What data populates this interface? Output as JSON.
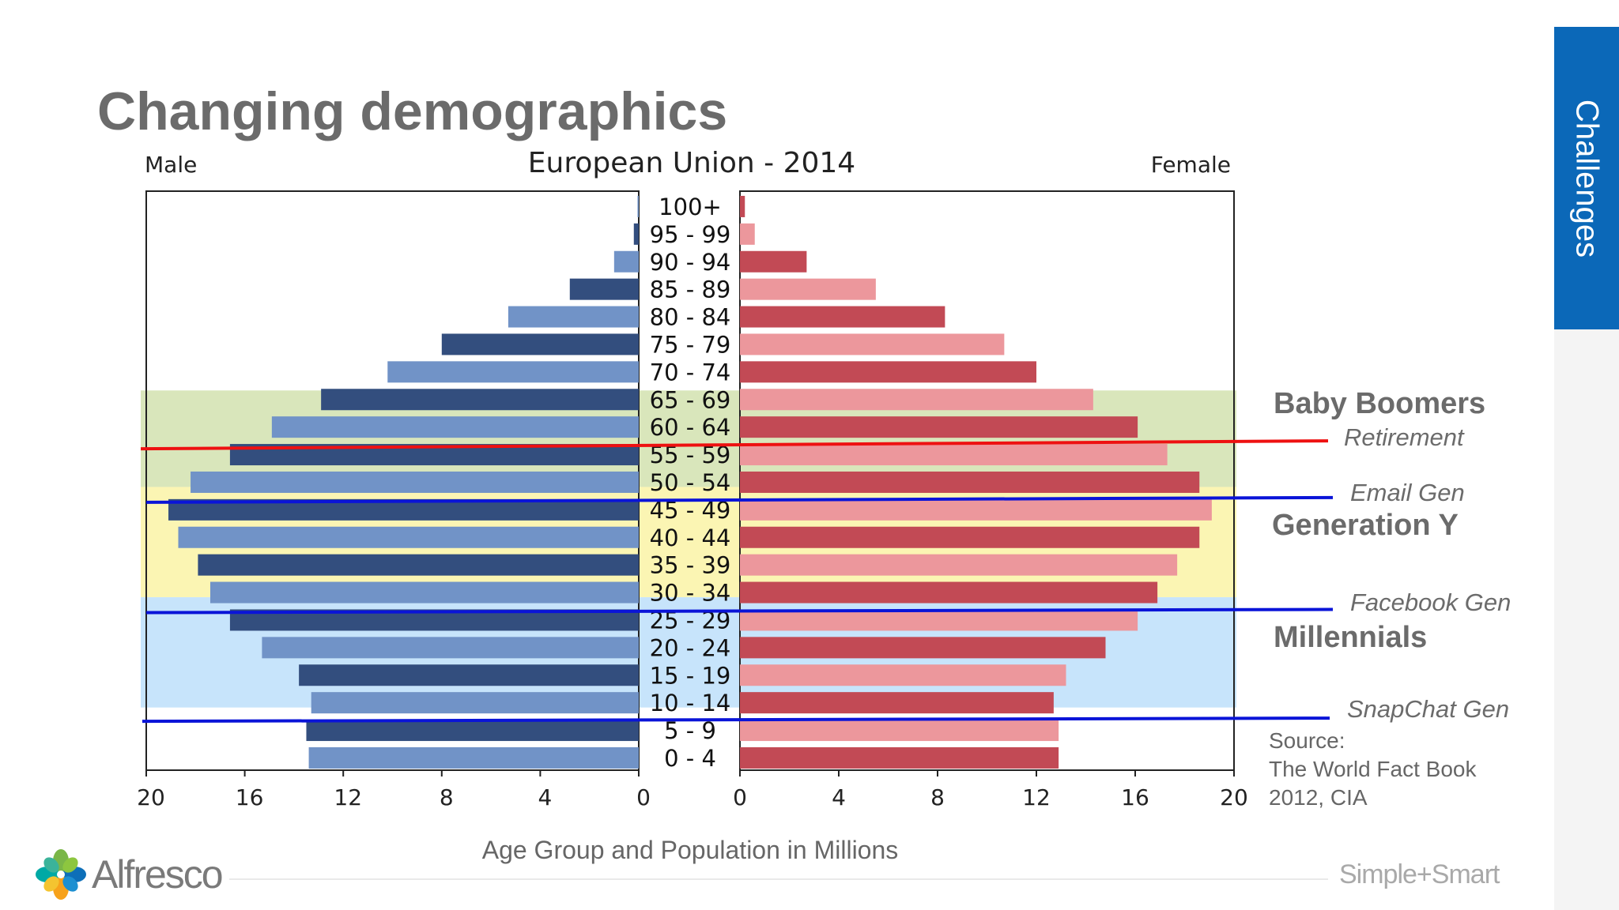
{
  "slide": {
    "title": "Changing demographics",
    "side_tab": "Challenges",
    "source_lines": [
      "Source:",
      "The World Fact Book",
      "2012, CIA"
    ],
    "logo_text": "Alfresco",
    "tagline": "Simple+Smart"
  },
  "colors": {
    "male_dark": "#334e7e",
    "male_light": "#7193c7",
    "female_dark": "#c24a55",
    "female_light": "#ec979c",
    "band_boomers": "#d9e6bb",
    "band_gen_y": "#fbf5b3",
    "band_millennials": "#c7e4fb",
    "retirement_line": "#ee1111",
    "gen_line": "#0a14d8"
  },
  "generations": [
    {
      "label": "Baby Boomers",
      "style": "bold"
    },
    {
      "label": "Retirement",
      "style": "italic"
    },
    {
      "label": "Email Gen",
      "style": "italic"
    },
    {
      "label": "Generation Y",
      "style": "bold"
    },
    {
      "label": "Facebook Gen",
      "style": "italic"
    },
    {
      "label": "Millennials",
      "style": "bold"
    },
    {
      "label": "SnapChat Gen",
      "style": "italic"
    }
  ],
  "chart_data": {
    "type": "bar",
    "title": "European Union - 2014",
    "left_label": "Male",
    "right_label": "Female",
    "xlabel": "Age Group and Population in Millions",
    "xlim": [
      0,
      20
    ],
    "x_ticks_left": [
      "20",
      "16",
      "12",
      "8",
      "4",
      "0"
    ],
    "x_ticks_right": [
      "0",
      "4",
      "8",
      "12",
      "16",
      "20"
    ],
    "categories": [
      "100+",
      "95 - 99",
      "90 - 94",
      "85 - 89",
      "80 - 84",
      "75 - 79",
      "70 - 74",
      "65 - 69",
      "60 - 64",
      "55 - 59",
      "50 - 54",
      "45 - 49",
      "40 - 44",
      "35 - 39",
      "30 - 34",
      "25 - 29",
      "20 - 24",
      "15 - 19",
      "10 - 14",
      "5 - 9",
      "0 - 4"
    ],
    "series": [
      {
        "name": "Male",
        "values": [
          0.05,
          0.2,
          1.0,
          2.8,
          5.3,
          8.0,
          10.2,
          12.9,
          14.9,
          16.6,
          18.2,
          19.1,
          18.7,
          17.9,
          17.4,
          16.6,
          15.3,
          13.8,
          13.3,
          13.5,
          13.4
        ]
      },
      {
        "name": "Female",
        "values": [
          0.2,
          0.6,
          2.7,
          5.5,
          8.3,
          10.7,
          12.0,
          14.3,
          16.1,
          17.3,
          18.6,
          19.1,
          18.6,
          17.7,
          16.9,
          16.1,
          14.8,
          13.2,
          12.7,
          12.9,
          12.9
        ]
      }
    ]
  }
}
